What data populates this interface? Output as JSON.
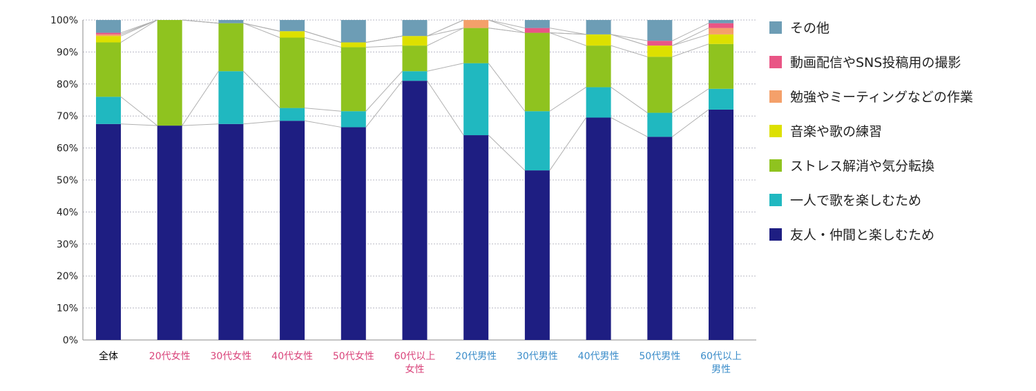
{
  "chart_data": {
    "type": "bar",
    "stacked": true,
    "normalized": true,
    "title": "",
    "xlabel": "",
    "ylabel": "",
    "ylim": [
      0,
      100
    ],
    "y_ticks": [
      "0%",
      "10%",
      "20%",
      "30%",
      "40%",
      "50%",
      "60%",
      "70%",
      "80%",
      "90%",
      "100%"
    ],
    "grid": true,
    "legend_position": "right",
    "categories": [
      {
        "label": [
          "全体"
        ],
        "color": "#000000"
      },
      {
        "label": [
          "20代女性"
        ],
        "color": "#d9437a"
      },
      {
        "label": [
          "30代女性"
        ],
        "color": "#d9437a"
      },
      {
        "label": [
          "40代女性"
        ],
        "color": "#d9437a"
      },
      {
        "label": [
          "50代女性"
        ],
        "color": "#d9437a"
      },
      {
        "label": [
          "60代以上",
          "女性"
        ],
        "color": "#d9437a"
      },
      {
        "label": [
          "20代男性"
        ],
        "color": "#3a8cc9"
      },
      {
        "label": [
          "30代男性"
        ],
        "color": "#3a8cc9"
      },
      {
        "label": [
          "40代男性"
        ],
        "color": "#3a8cc9"
      },
      {
        "label": [
          "50代男性"
        ],
        "color": "#3a8cc9"
      },
      {
        "label": [
          "60代以上",
          "男性"
        ],
        "color": "#3a8cc9"
      }
    ],
    "series": [
      {
        "name": "友人・仲間と楽しむため",
        "color": "#1e1e82",
        "values": [
          67.5,
          67,
          67.5,
          68.5,
          66.5,
          81,
          64,
          53,
          69.5,
          63.5,
          72
        ]
      },
      {
        "name": "一人で歌を楽しむため",
        "color": "#20b8c0",
        "values": [
          8.5,
          0,
          16.5,
          4,
          5,
          3,
          22.5,
          18.5,
          9.5,
          7.5,
          6.5
        ]
      },
      {
        "name": "ストレス解消や気分転換",
        "color": "#8fc31f",
        "values": [
          17,
          33,
          15,
          22,
          20,
          8,
          11,
          24.5,
          13,
          17.5,
          14
        ]
      },
      {
        "name": "音楽や歌の練習",
        "color": "#dde000",
        "values": [
          2,
          0,
          0,
          2,
          1.5,
          3,
          0,
          0,
          3.5,
          3.5,
          3
        ]
      },
      {
        "name": "勉強やミーティングなどの作業",
        "color": "#f4a06a",
        "values": [
          0.5,
          0,
          0,
          0,
          0,
          0,
          2.5,
          0,
          0,
          0,
          2
        ]
      },
      {
        "name": "動画配信やSNS投稿用の撮影",
        "color": "#e95585",
        "values": [
          0.5,
          0,
          0,
          0,
          0,
          0,
          0,
          1.5,
          0,
          1.5,
          1.5
        ]
      },
      {
        "name": "その他",
        "color": "#6d9db5",
        "values": [
          4,
          0,
          1,
          3.5,
          7,
          5,
          0,
          2.5,
          4.5,
          6.5,
          1
        ]
      }
    ]
  },
  "legend": {
    "order": [
      6,
      5,
      4,
      3,
      2,
      1,
      0
    ]
  }
}
